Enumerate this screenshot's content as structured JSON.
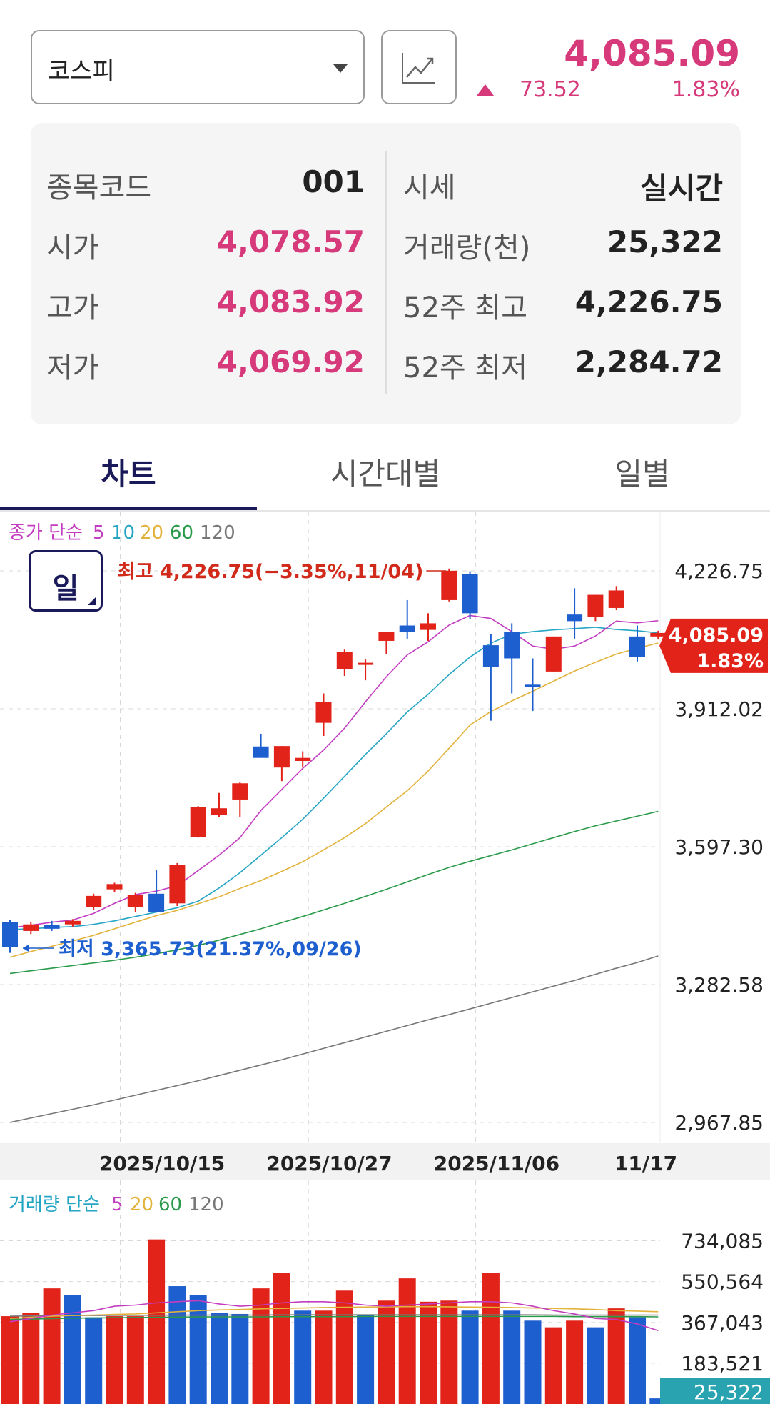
{
  "header": {
    "market_selector": "코스피",
    "price": "4,085.09",
    "change": "73.52",
    "change_pct": "1.83%"
  },
  "info": {
    "left": [
      {
        "label": "종목코드",
        "value": "001"
      },
      {
        "label": "시가",
        "value": "4,078.57"
      },
      {
        "label": "고가",
        "value": "4,083.92"
      },
      {
        "label": "저가",
        "value": "4,069.92"
      }
    ],
    "right": [
      {
        "label": "시세",
        "value": "실시간"
      },
      {
        "label": "거래량(천)",
        "value": "25,322"
      },
      {
        "label": "52주 최고",
        "value": "4,226.75"
      },
      {
        "label": "52주 최저",
        "value": "2,284.72"
      }
    ]
  },
  "tabs": [
    "차트",
    "시간대별",
    "일별"
  ],
  "period_button": "일",
  "colors": {
    "up": "#e2231a",
    "down": "#1e5fd0",
    "accent": "#d63a7a",
    "ma5": "#c33cc0",
    "ma10": "#25a5c4",
    "ma20": "#e2b23a",
    "ma60": "#2a9a4a",
    "ma120": "#777777"
  },
  "chart_data": [
    {
      "type": "candlestick",
      "legend": {
        "prefix": "종가 단순",
        "items": [
          {
            "label": "5",
            "color": "#c33cc0"
          },
          {
            "label": "10",
            "color": "#25a5c4"
          },
          {
            "label": "20",
            "color": "#e2b23a"
          },
          {
            "label": "60",
            "color": "#2a9a4a"
          },
          {
            "label": "120",
            "color": "#777777"
          }
        ]
      },
      "ylim": [
        2900,
        4300
      ],
      "y_ticks": [
        {
          "value": 4226.75,
          "label": "4,226.75"
        },
        {
          "value": 3912.02,
          "label": "3,912.02"
        },
        {
          "value": 3597.3,
          "label": "3,597.30"
        },
        {
          "value": 3282.58,
          "label": "3,282.58"
        },
        {
          "value": 2967.85,
          "label": "2,967.85"
        }
      ],
      "x_ticks": [
        {
          "index": 7,
          "label": "2025/10/15"
        },
        {
          "index": 15,
          "label": "2025/10/27"
        },
        {
          "index": 23,
          "label": "2025/11/06"
        },
        {
          "index": 30,
          "label": "11/17"
        }
      ],
      "current": {
        "price": "4,085.09",
        "pct": "1.83%",
        "value": 4085.09
      },
      "high_note": {
        "text": "최고 4,226.75(−3.35%,11/04)",
        "index": 21,
        "value": 4226.75
      },
      "low_note": {
        "text": "최저 3,365.73(21.37%,09/26)",
        "index": 0,
        "value": 3365.73
      },
      "candles": [
        {
          "o": 3425,
          "h": 3430,
          "l": 3355,
          "c": 3368
        },
        {
          "o": 3405,
          "h": 3425,
          "l": 3398,
          "c": 3420
        },
        {
          "o": 3418,
          "h": 3428,
          "l": 3405,
          "c": 3410
        },
        {
          "o": 3420,
          "h": 3432,
          "l": 3415,
          "c": 3428
        },
        {
          "o": 3460,
          "h": 3490,
          "l": 3453,
          "c": 3485
        },
        {
          "o": 3500,
          "h": 3515,
          "l": 3493,
          "c": 3512
        },
        {
          "o": 3460,
          "h": 3492,
          "l": 3448,
          "c": 3488
        },
        {
          "o": 3490,
          "h": 3545,
          "l": 3455,
          "c": 3448
        },
        {
          "o": 3468,
          "h": 3560,
          "l": 3462,
          "c": 3555
        },
        {
          "o": 3620,
          "h": 3690,
          "l": 3618,
          "c": 3688
        },
        {
          "o": 3670,
          "h": 3720,
          "l": 3665,
          "c": 3685
        },
        {
          "o": 3705,
          "h": 3745,
          "l": 3665,
          "c": 3742
        },
        {
          "o": 3826,
          "h": 3855,
          "l": 3802,
          "c": 3800
        },
        {
          "o": 3778,
          "h": 3827,
          "l": 3747,
          "c": 3827
        },
        {
          "o": 3793,
          "h": 3815,
          "l": 3778,
          "c": 3800
        },
        {
          "o": 3880,
          "h": 3947,
          "l": 3850,
          "c": 3927
        },
        {
          "o": 4002,
          "h": 4047,
          "l": 3987,
          "c": 4042
        },
        {
          "o": 4017,
          "h": 4025,
          "l": 3977,
          "c": 4017
        },
        {
          "o": 4067,
          "h": 4087,
          "l": 4037,
          "c": 4087
        },
        {
          "o": 4102,
          "h": 4160,
          "l": 4072,
          "c": 4087
        },
        {
          "o": 4092,
          "h": 4130,
          "l": 4067,
          "c": 4107
        },
        {
          "o": 4160,
          "h": 4232,
          "l": 4157,
          "c": 4227
        },
        {
          "o": 4220,
          "h": 4226,
          "l": 4117,
          "c": 4130
        },
        {
          "o": 4057,
          "h": 4082,
          "l": 3885,
          "c": 4007
        },
        {
          "o": 4087,
          "h": 4107,
          "l": 3947,
          "c": 4027
        },
        {
          "o": 3967,
          "h": 4027,
          "l": 3907,
          "c": 3962
        },
        {
          "o": 3997,
          "h": 4077,
          "l": 3997,
          "c": 4077
        },
        {
          "o": 4127,
          "h": 4187,
          "l": 4072,
          "c": 4112
        },
        {
          "o": 4122,
          "h": 4172,
          "l": 4112,
          "c": 4172
        },
        {
          "o": 4142,
          "h": 4192,
          "l": 4137,
          "c": 4182
        },
        {
          "o": 4077,
          "h": 4102,
          "l": 4020,
          "c": 4030
        },
        {
          "o": 4077,
          "h": 4090,
          "l": 4070,
          "c": 4085
        }
      ],
      "ma5": [
        3412,
        3418,
        3425,
        3430,
        3445,
        3468,
        3488,
        3496,
        3508,
        3543,
        3578,
        3618,
        3680,
        3728,
        3776,
        3818,
        3868,
        3928,
        3985,
        4035,
        4065,
        4103,
        4125,
        4118,
        4088,
        4055,
        4048,
        4055,
        4078,
        4112,
        4108,
        4113
      ],
      "ma10": [
        3408,
        3410,
        3413,
        3415,
        3420,
        3428,
        3438,
        3448,
        3458,
        3473,
        3503,
        3538,
        3578,
        3618,
        3660,
        3708,
        3758,
        3808,
        3855,
        3905,
        3945,
        3990,
        4030,
        4062,
        4082,
        4088,
        4092,
        4095,
        4098,
        4093,
        4090,
        4085
      ],
      "ma20": [
        3345,
        3358,
        3370,
        3382,
        3395,
        3410,
        3425,
        3440,
        3452,
        3467,
        3483,
        3502,
        3520,
        3541,
        3563,
        3590,
        3618,
        3650,
        3688,
        3725,
        3770,
        3822,
        3875,
        3906,
        3930,
        3952,
        3975,
        3998,
        4018,
        4037,
        4050,
        4062
      ],
      "ma60": [
        3308,
        3314,
        3320,
        3326,
        3332,
        3338,
        3345,
        3353,
        3362,
        3372,
        3384,
        3397,
        3410,
        3424,
        3438,
        3453,
        3468,
        3484,
        3500,
        3517,
        3534,
        3550,
        3564,
        3577,
        3590,
        3604,
        3618,
        3632,
        3645,
        3656,
        3667,
        3678
      ],
      "ma120": [
        2968,
        2978,
        2988,
        2998,
        3008,
        3019,
        3030,
        3041,
        3052,
        3063,
        3075,
        3087,
        3099,
        3111,
        3124,
        3137,
        3150,
        3163,
        3176,
        3189,
        3202,
        3214,
        3227,
        3240,
        3253,
        3266,
        3279,
        3292,
        3306,
        3320,
        3333,
        3348
      ]
    },
    {
      "type": "bar",
      "legend": {
        "prefix": "거래량 단순",
        "items": [
          {
            "label": "5",
            "color": "#c33cc0"
          },
          {
            "label": "20",
            "color": "#e2b23a"
          },
          {
            "label": "60",
            "color": "#2a9a4a"
          },
          {
            "label": "120",
            "color": "#777777"
          }
        ]
      },
      "ylim": [
        0,
        800000
      ],
      "y_ticks": [
        {
          "value": 734085,
          "label": "734,085"
        },
        {
          "value": 550564,
          "label": "550,564"
        },
        {
          "value": 367043,
          "label": "367,043"
        },
        {
          "value": 183521,
          "label": "183,521"
        }
      ],
      "current": {
        "label": "25,322",
        "value": 25322
      },
      "values": [
        395000,
        410000,
        520000,
        490000,
        390000,
        395000,
        395000,
        740000,
        530000,
        490000,
        410000,
        405000,
        520000,
        590000,
        420000,
        420000,
        510000,
        400000,
        465000,
        565000,
        460000,
        465000,
        420000,
        590000,
        420000,
        375000,
        345000,
        375000,
        345000,
        430000,
        390000,
        25322
      ],
      "up": [
        true,
        true,
        true,
        false,
        false,
        true,
        true,
        true,
        false,
        false,
        false,
        false,
        true,
        true,
        false,
        true,
        true,
        false,
        true,
        true,
        true,
        true,
        false,
        true,
        false,
        false,
        true,
        true,
        false,
        true,
        false,
        false
      ],
      "ma5": [
        370000,
        385000,
        400000,
        410000,
        420000,
        440000,
        445000,
        455000,
        460000,
        465000,
        450000,
        440000,
        445000,
        455000,
        460000,
        460000,
        455000,
        445000,
        440000,
        445000,
        450000,
        455000,
        460000,
        460000,
        455000,
        440000,
        420000,
        405000,
        385000,
        380000,
        360000,
        330000
      ],
      "ma20": [
        385000,
        390000,
        395000,
        398000,
        400000,
        403000,
        405000,
        410000,
        415000,
        420000,
        423000,
        425000,
        428000,
        430000,
        432000,
        434000,
        435000,
        436000,
        437000,
        438000,
        438000,
        437000,
        436000,
        435000,
        434000,
        432000,
        430000,
        428000,
        425000,
        420000,
        418000,
        415000
      ],
      "ma60": [
        380000,
        382000,
        384000,
        386000,
        387000,
        388000,
        389000,
        390000,
        391000,
        392000,
        392000,
        392000,
        392000,
        393000,
        393000,
        393000,
        393000,
        394000,
        394000,
        394000,
        394000,
        394000,
        394000,
        394000,
        394000,
        394000,
        394000,
        393000,
        393000,
        393000,
        393000,
        392000
      ],
      "ma120": [
        395000,
        396000,
        397000,
        398000,
        398000,
        399000,
        399000,
        399000,
        400000,
        400000,
        400000,
        400000,
        400000,
        401000,
        401000,
        401000,
        401000,
        401000,
        401000,
        401000,
        401000,
        401000,
        401000,
        401000,
        401000,
        401000,
        400000,
        400000,
        400000,
        400000,
        400000,
        400000
      ]
    }
  ]
}
